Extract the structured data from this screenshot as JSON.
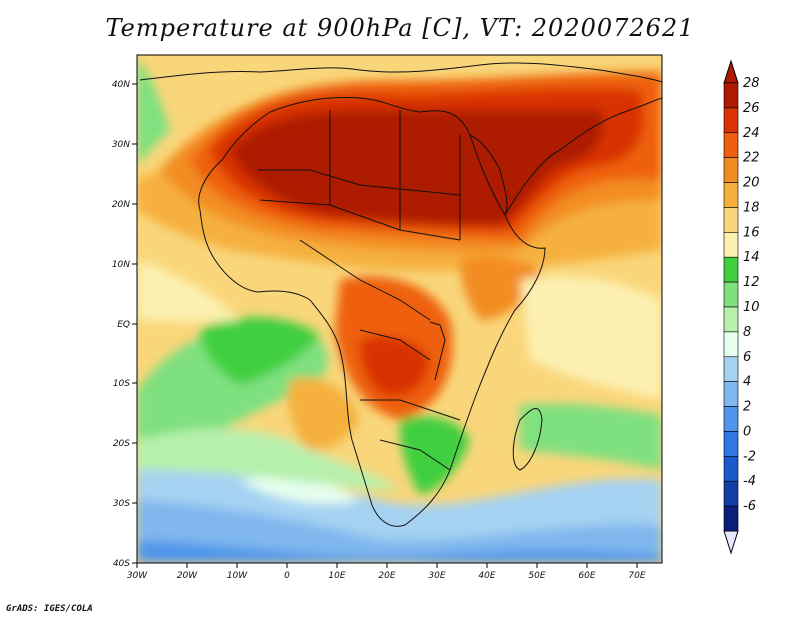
{
  "title": "Temperature at 900hPa [C], VT: 2020072621",
  "credit": "GrADS: IGES/COLA",
  "map": {
    "lon_ticks": [
      "30W",
      "20W",
      "10W",
      "0",
      "10E",
      "20E",
      "30E",
      "40E",
      "50E",
      "60E",
      "70E"
    ],
    "lat_ticks": [
      "40N",
      "30N",
      "20N",
      "10N",
      "EQ",
      "10S",
      "20S",
      "30S",
      "40S"
    ],
    "region": {
      "lon_range": [
        -30,
        75
      ],
      "lat_range": [
        -40,
        45
      ]
    }
  },
  "colorbar": {
    "labels": [
      "28",
      "26",
      "24",
      "22",
      "20",
      "18",
      "16",
      "14",
      "12",
      "10",
      "8",
      "6",
      "4",
      "2",
      "0",
      "-2",
      "-4",
      "-6"
    ],
    "colors": [
      "#ad1a00",
      "#d83300",
      "#ee6010",
      "#f38c20",
      "#f5b03e",
      "#f9d67a",
      "#fcf0b0",
      "#3fcf3f",
      "#7fe07f",
      "#b7f0ad",
      "#e6ffef",
      "#a6d2f2",
      "#7fb7ee",
      "#4f96ea",
      "#2f78e2",
      "#1a5acc",
      "#103ea6",
      "#0a1e7a"
    ]
  }
}
